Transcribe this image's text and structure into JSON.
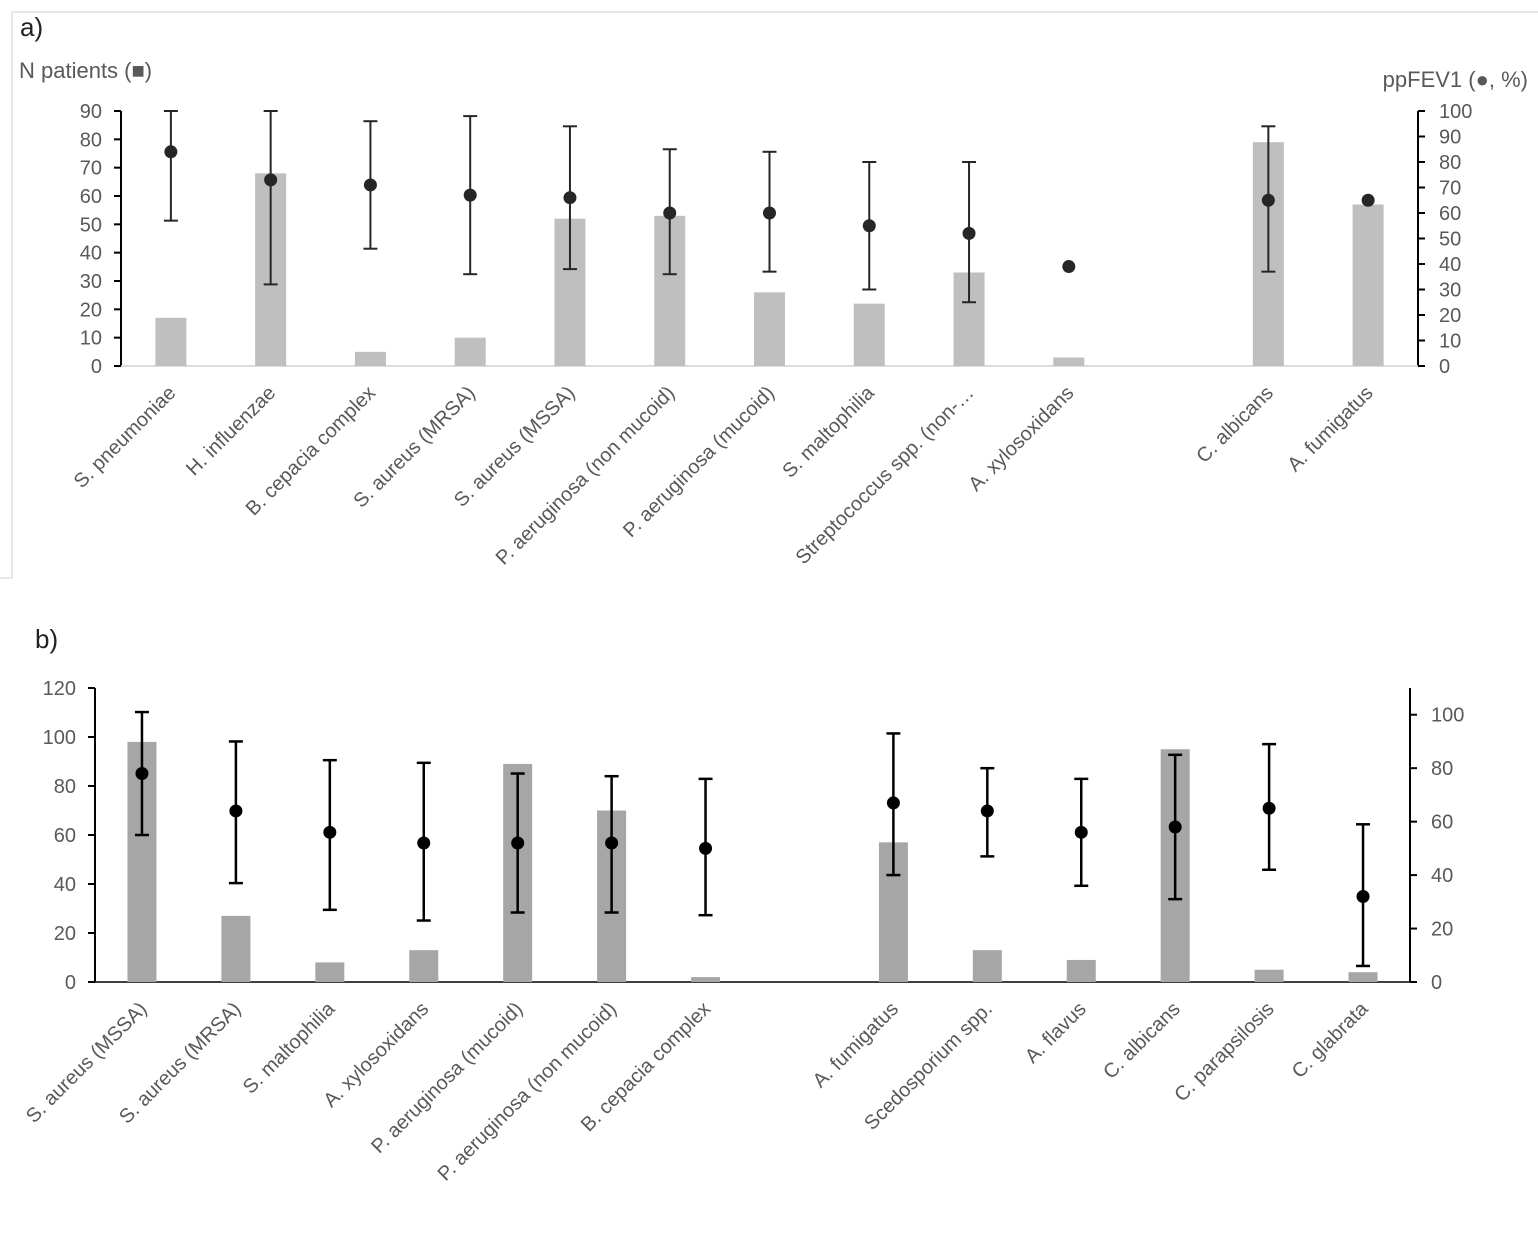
{
  "chart_data": [
    {
      "panel_label": "a)",
      "type": "bar",
      "y_left_label": "N patients (■)",
      "y_right_label": "ppFEV1 (●, %)",
      "ylim_left": [
        0,
        90
      ],
      "left_ticks": [
        "0",
        "10",
        "20",
        "30",
        "40",
        "50",
        "60",
        "70",
        "80",
        "90"
      ],
      "ylim_right": [
        0,
        100
      ],
      "right_ticks": [
        "0",
        "10",
        "20",
        "30",
        "40",
        "50",
        "60",
        "70",
        "80",
        "90",
        "100"
      ],
      "categories": [
        "S. pneumoniae",
        "H. influenzae",
        "B. cepacia complex",
        "S. aureus (MRSA)",
        "S. aureus (MSSA)",
        "P. aeruginosa (non mucoid)",
        "P. aeruginosa (mucoid)",
        "S. maltophilia",
        "Streptococcus spp. (non-…",
        "A. xylosoxidans",
        "",
        "C. albicans",
        "A. fumigatus"
      ],
      "series": [
        {
          "name": "N patients",
          "kind": "bar",
          "axis": "left",
          "values": [
            17,
            68,
            5,
            10,
            52,
            53,
            26,
            22,
            33,
            3,
            null,
            79,
            57
          ]
        },
        {
          "name": "ppFEV1",
          "kind": "point",
          "axis": "right",
          "values": [
            84,
            73,
            71,
            67,
            66,
            60,
            60,
            55,
            52,
            39,
            null,
            65,
            65
          ],
          "err_low": [
            57,
            32,
            46,
            36,
            38,
            36,
            37,
            30,
            25,
            null,
            null,
            37,
            null
          ],
          "err_high": [
            100,
            100,
            96,
            98,
            94,
            85,
            84,
            80,
            80,
            null,
            null,
            94,
            null
          ]
        }
      ],
      "colors": {
        "bar": "#bfbfbf",
        "point": "#262626",
        "axis": "#000000",
        "text": "#595959"
      }
    },
    {
      "panel_label": "b)",
      "type": "bar",
      "ylim_left": [
        0,
        120
      ],
      "left_ticks": [
        "0",
        "20",
        "40",
        "60",
        "80",
        "100",
        "120"
      ],
      "ylim_right": [
        0,
        110
      ],
      "right_ticks": [
        "0",
        "20",
        "40",
        "60",
        "80",
        "100"
      ],
      "categories": [
        "S. aureus (MSSA)",
        "S. aureus (MRSA)",
        "S. maltophilia",
        "A. xylosoxidans",
        "P. aeruginosa (mucoid)",
        "P. aeruginosa (non mucoid)",
        "B. cepacia complex",
        "",
        "A. fumigatus",
        "Scedosporium spp.",
        "A. flavus",
        "C. albicans",
        "C. parapsilosis",
        "C. glabrata"
      ],
      "series": [
        {
          "name": "N patients",
          "kind": "bar",
          "axis": "left",
          "values": [
            98,
            27,
            8,
            13,
            89,
            70,
            2,
            null,
            57,
            13,
            9,
            95,
            5,
            4
          ]
        },
        {
          "name": "ppFEV1",
          "kind": "point",
          "axis": "right",
          "values": [
            78,
            64,
            56,
            52,
            52,
            52,
            50,
            null,
            67,
            64,
            56,
            58,
            65,
            32
          ],
          "err_low": [
            55,
            37,
            27,
            23,
            26,
            26,
            25,
            null,
            40,
            47,
            36,
            31,
            42,
            6
          ],
          "err_high": [
            101,
            90,
            83,
            82,
            78,
            77,
            76,
            null,
            93,
            80,
            76,
            85,
            89,
            59
          ]
        }
      ],
      "colors": {
        "bar": "#a6a6a6",
        "point": "#000000",
        "axis": "#000000",
        "text": "#595959"
      }
    }
  ]
}
